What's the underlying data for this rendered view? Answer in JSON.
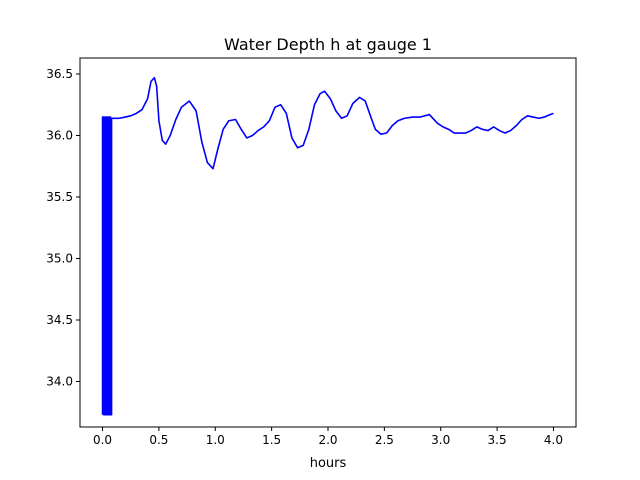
{
  "chart_data": {
    "type": "line",
    "title": "Water Depth h at gauge 1",
    "xlabel": "hours",
    "ylabel": "",
    "xlim": [
      -0.2,
      4.2
    ],
    "ylim": [
      33.63,
      36.63
    ],
    "xticks": [
      0.0,
      0.5,
      1.0,
      1.5,
      2.0,
      2.5,
      3.0,
      3.5,
      4.0
    ],
    "xtick_labels": [
      "0.0",
      "0.5",
      "1.0",
      "1.5",
      "2.0",
      "2.5",
      "3.0",
      "3.5",
      "4.0"
    ],
    "yticks": [
      34.0,
      34.5,
      35.0,
      35.5,
      36.0,
      36.5
    ],
    "ytick_labels": [
      "34.0",
      "34.5",
      "35.0",
      "35.5",
      "36.0",
      "36.5"
    ],
    "grid": false,
    "series": [
      {
        "color": "#0000ff",
        "x": [
          0.0,
          0.0,
          0.01,
          0.01,
          0.02,
          0.02,
          0.03,
          0.03,
          0.04,
          0.04,
          0.05,
          0.05,
          0.06,
          0.06,
          0.07,
          0.07,
          0.08,
          0.08,
          0.1,
          0.15,
          0.2,
          0.25,
          0.3,
          0.35,
          0.4,
          0.43,
          0.46,
          0.48,
          0.5,
          0.53,
          0.56,
          0.6,
          0.65,
          0.7,
          0.77,
          0.83,
          0.88,
          0.93,
          0.98,
          1.02,
          1.07,
          1.12,
          1.18,
          1.23,
          1.28,
          1.33,
          1.38,
          1.43,
          1.48,
          1.53,
          1.58,
          1.63,
          1.68,
          1.73,
          1.78,
          1.83,
          1.88,
          1.93,
          1.97,
          2.02,
          2.07,
          2.12,
          2.17,
          2.22,
          2.28,
          2.33,
          2.38,
          2.42,
          2.47,
          2.52,
          2.57,
          2.62,
          2.68,
          2.75,
          2.82,
          2.9,
          2.97,
          3.02,
          3.07,
          3.12,
          3.17,
          3.22,
          3.27,
          3.32,
          3.37,
          3.42,
          3.47,
          3.52,
          3.57,
          3.62,
          3.67,
          3.72,
          3.77,
          3.82,
          3.87,
          3.92,
          3.97,
          4.0
        ],
        "y": [
          33.73,
          36.15,
          36.15,
          33.73,
          33.73,
          36.15,
          36.15,
          33.73,
          33.73,
          36.15,
          36.15,
          33.73,
          33.73,
          36.15,
          36.15,
          33.73,
          33.73,
          36.14,
          36.14,
          36.14,
          36.15,
          36.16,
          36.18,
          36.21,
          36.3,
          36.44,
          36.47,
          36.4,
          36.12,
          35.96,
          35.93,
          36.0,
          36.13,
          36.23,
          36.28,
          36.2,
          35.95,
          35.78,
          35.73,
          35.88,
          36.05,
          36.12,
          36.13,
          36.05,
          35.98,
          36.0,
          36.04,
          36.07,
          36.12,
          36.23,
          36.25,
          36.18,
          35.98,
          35.9,
          35.92,
          36.05,
          36.25,
          36.34,
          36.36,
          36.3,
          36.2,
          36.14,
          36.16,
          36.26,
          36.31,
          36.28,
          36.15,
          36.05,
          36.01,
          36.02,
          36.08,
          36.12,
          36.14,
          36.15,
          36.15,
          36.17,
          36.1,
          36.07,
          36.05,
          36.02,
          36.02,
          36.02,
          36.04,
          36.07,
          36.05,
          36.04,
          36.07,
          36.04,
          36.02,
          36.04,
          36.08,
          36.13,
          36.16,
          36.15,
          36.14,
          36.15,
          36.17,
          36.18
        ]
      }
    ]
  }
}
